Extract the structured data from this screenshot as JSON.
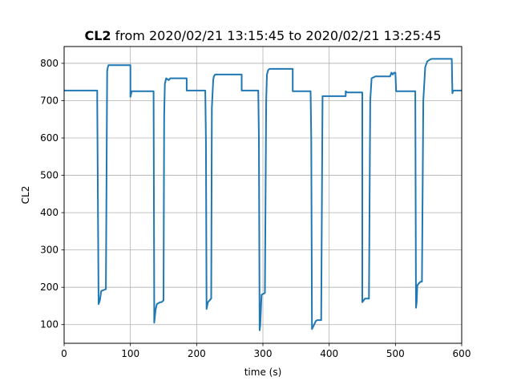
{
  "chart_data": {
    "type": "line",
    "title_bold": "CL2",
    "title_rest": " from 2020/02/21 13:15:45 to 2020/02/21 13:25:45",
    "xlabel": "time (s)",
    "ylabel": "CL2",
    "xlim": [
      0,
      600
    ],
    "ylim": [
      50,
      845
    ],
    "xticks": [
      0,
      100,
      200,
      300,
      400,
      500,
      600
    ],
    "yticks": [
      100,
      200,
      300,
      400,
      500,
      600,
      700,
      800
    ],
    "grid": true,
    "line_color": "#1f77b4",
    "series": [
      {
        "x": [
          0,
          50,
          50,
          52,
          54,
          56,
          63,
          63,
          65,
          66,
          67,
          68,
          70,
          100,
          100,
          102,
          103,
          104,
          135,
          136,
          136,
          138,
          140,
          145,
          147,
          150,
          151,
          152,
          154,
          158,
          160,
          165,
          185,
          185,
          187,
          213,
          214,
          215,
          217,
          222,
          223,
          225,
          226,
          228,
          230,
          250,
          268,
          268,
          270,
          293,
          294,
          295,
          296,
          298,
          303,
          303,
          305,
          306,
          308,
          310,
          312,
          330,
          345,
          345,
          347,
          372,
          373,
          374,
          376,
          380,
          382,
          388,
          390,
          400,
          410,
          425,
          425,
          427,
          450,
          450,
          452,
          454,
          460,
          462,
          464,
          470,
          480,
          492,
          494,
          496,
          498,
          500,
          501,
          502,
          530,
          531,
          532,
          533,
          535,
          538,
          540,
          542,
          545,
          548,
          552,
          555,
          560,
          570,
          585,
          586,
          587,
          590,
          600
        ],
        "y": [
          727,
          727,
          700,
          155,
          165,
          190,
          195,
          195,
          780,
          790,
          795,
          795,
          795,
          795,
          710,
          725,
          725,
          725,
          725,
          160,
          105,
          140,
          155,
          160,
          160,
          165,
          660,
          745,
          760,
          755,
          760,
          760,
          760,
          727,
          727,
          727,
          600,
          142,
          160,
          170,
          680,
          755,
          765,
          770,
          770,
          770,
          770,
          727,
          727,
          727,
          600,
          85,
          100,
          180,
          185,
          190,
          700,
          770,
          782,
          785,
          785,
          785,
          785,
          725,
          725,
          725,
          600,
          88,
          95,
          110,
          112,
          112,
          712,
          712,
          712,
          712,
          725,
          722,
          722,
          160,
          165,
          170,
          170,
          700,
          760,
          765,
          765,
          765,
          775,
          770,
          775,
          775,
          725,
          725,
          725,
          145,
          160,
          205,
          210,
          215,
          215,
          700,
          790,
          805,
          810,
          812,
          812,
          812,
          812,
          720,
          727,
          727,
          727
        ]
      }
    ]
  }
}
